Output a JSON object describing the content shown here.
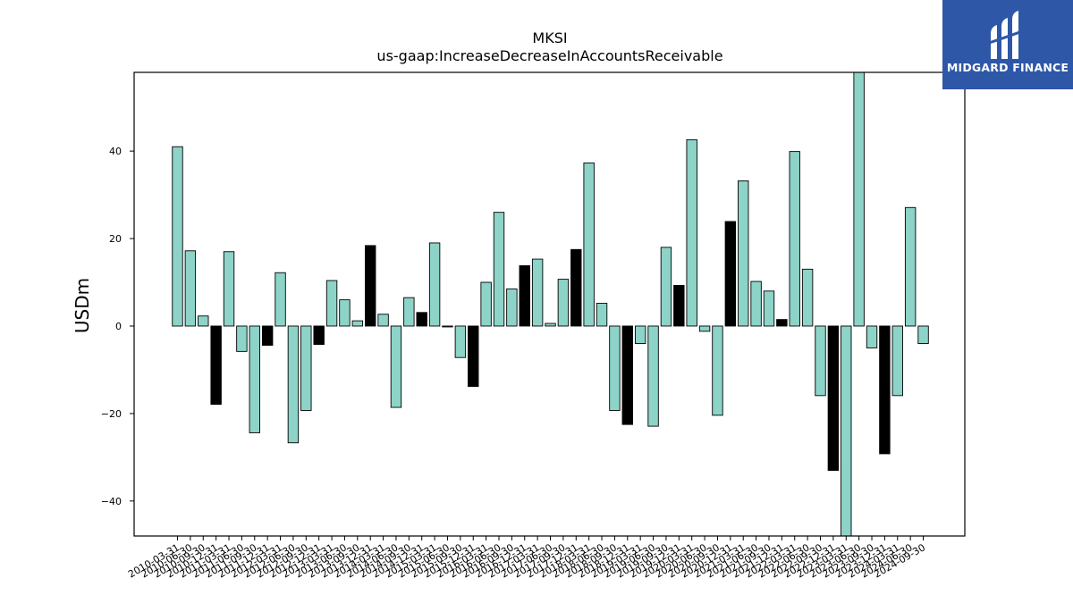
{
  "chart_data": {
    "type": "bar",
    "title": "MKSI",
    "subtitle": "us-gaap:IncreaseDecreaseInAccountsReceivable",
    "ylabel": "USDm",
    "xlabel": "",
    "ylim": [
      -48,
      58
    ],
    "yticks": [
      -40,
      -20,
      0,
      20,
      40
    ],
    "grid": false,
    "colors": {
      "positive": "#8dd3c7",
      "negative_q4": "#000000",
      "edge": "#000000"
    },
    "x_tick_labels": [
      "2010-03-31",
      "2010-06-30",
      "2010-09-30",
      "2010-12-31",
      "2011-03-31",
      "2011-06-30",
      "2011-09-30",
      "2011-12-31",
      "2012-03-31",
      "2012-06-30",
      "2012-09-30",
      "2012-12-31",
      "2013-03-31",
      "2013-06-30",
      "2013-09-30",
      "2013-12-31",
      "2014-03-31",
      "2014-06-30",
      "2014-09-30",
      "2014-12-31",
      "2015-03-31",
      "2015-06-30",
      "2015-09-30",
      "2015-12-31",
      "2016-03-31",
      "2016-06-30",
      "2016-09-30",
      "2016-12-31",
      "2017-03-31",
      "2017-06-30",
      "2017-09-30",
      "2017-12-31",
      "2018-03-31",
      "2018-06-30",
      "2018-09-30",
      "2018-12-31",
      "2019-03-31",
      "2019-06-30",
      "2019-09-30",
      "2019-12-31",
      "2020-03-31",
      "2020-06-30",
      "2020-09-30",
      "2020-12-31",
      "2021-03-31",
      "2021-06-30",
      "2021-09-30",
      "2021-12-31",
      "2022-03-31",
      "2022-06-30",
      "2022-09-30",
      "2022-12-31",
      "2023-03-31",
      "2023-06-30",
      "2023-09-30",
      "2023-12-31",
      "2024-03-31",
      "2024-06-30",
      "2024-09-30"
    ],
    "values": [
      41,
      17.2,
      2.3,
      -17.9,
      17,
      -5.8,
      -24.4,
      -4.4,
      12.2,
      -26.7,
      -19.3,
      -4.2,
      10.4,
      6,
      1.2,
      18.4,
      2.7,
      -18.6,
      6.5,
      3.1,
      19,
      -0.2,
      -7.2,
      -13.8,
      10,
      26,
      8.5,
      13.8,
      15.3,
      0.6,
      10.7,
      17.5,
      37.3,
      5.2,
      -19.3,
      -22.5,
      -4,
      -22.9,
      18,
      9.3,
      42.6,
      -1.2,
      -20.4,
      23.9,
      33.2,
      10.2,
      8,
      1.5,
      39.9,
      13,
      -15.9,
      -33,
      -48,
      58,
      -5,
      -29.2,
      -15.9,
      27.1,
      -4
    ],
    "bar_is_dark": [
      false,
      false,
      false,
      true,
      false,
      false,
      false,
      true,
      false,
      false,
      false,
      true,
      false,
      false,
      false,
      true,
      false,
      false,
      false,
      true,
      false,
      false,
      false,
      true,
      false,
      false,
      false,
      true,
      false,
      false,
      false,
      true,
      false,
      false,
      false,
      true,
      false,
      false,
      false,
      true,
      false,
      false,
      false,
      true,
      false,
      false,
      false,
      true,
      false,
      false,
      false,
      true,
      false,
      false,
      false,
      true,
      false,
      false,
      false
    ]
  },
  "logo": {
    "text": "MIDGARD FINANCE",
    "icon": "midgard-logo-icon"
  }
}
